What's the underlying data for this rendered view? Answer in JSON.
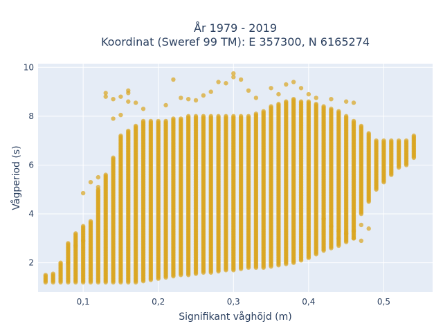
{
  "chart_data": {
    "type": "scatter",
    "title_line1": "År 1979 - 2019",
    "title_line2": "Koordinat (Sweref 99 TM): E 357300, N 6165274",
    "xlabel": "Signifikant våghöjd (m)",
    "ylabel": "Vågperiod (s)",
    "xlim": [
      0.04,
      0.565
    ],
    "ylim": [
      0.8,
      10.15
    ],
    "x_ticks": [
      0.1,
      0.2,
      0.3,
      0.4,
      0.5
    ],
    "x_tick_labels": [
      "0,1",
      "0,2",
      "0,3",
      "0,4",
      "0,5"
    ],
    "y_ticks": [
      2,
      4,
      6,
      8,
      10
    ],
    "y_tick_labels": [
      "2",
      "4",
      "6",
      "8",
      "10"
    ],
    "grid": true,
    "legend": "none",
    "marker_color": "#daa520",
    "background_color": "#e5ecf6",
    "x_step": 0.01,
    "x_values": [
      0.05,
      0.06,
      0.07,
      0.08,
      0.09,
      0.1,
      0.11,
      0.12,
      0.13,
      0.14,
      0.15,
      0.16,
      0.17,
      0.18,
      0.19,
      0.2,
      0.21,
      0.22,
      0.23,
      0.24,
      0.25,
      0.26,
      0.27,
      0.28,
      0.29,
      0.3,
      0.31,
      0.32,
      0.33,
      0.34,
      0.35,
      0.36,
      0.37,
      0.38,
      0.39,
      0.4,
      0.41,
      0.42,
      0.43,
      0.44,
      0.45,
      0.46,
      0.47,
      0.48,
      0.49,
      0.5,
      0.51,
      0.52,
      0.53,
      0.54
    ],
    "y_min": [
      1.2,
      1.2,
      1.2,
      1.2,
      1.2,
      1.2,
      1.2,
      1.2,
      1.2,
      1.2,
      1.2,
      1.2,
      1.2,
      1.25,
      1.3,
      1.35,
      1.4,
      1.45,
      1.5,
      1.5,
      1.55,
      1.6,
      1.6,
      1.65,
      1.7,
      1.7,
      1.75,
      1.8,
      1.8,
      1.8,
      1.85,
      1.9,
      1.95,
      2.0,
      2.1,
      2.2,
      2.35,
      2.5,
      2.6,
      2.7,
      2.85,
      3.0,
      4.0,
      4.5,
      5.0,
      5.3,
      5.6,
      5.9,
      6.0,
      6.3
    ],
    "y_max": [
      1.5,
      1.55,
      2.0,
      2.8,
      3.2,
      3.5,
      3.7,
      5.0,
      5.6,
      6.3,
      7.2,
      7.4,
      7.6,
      7.8,
      7.8,
      7.8,
      7.8,
      7.9,
      7.9,
      8.0,
      8.0,
      8.0,
      8.0,
      8.0,
      8.0,
      8.0,
      8.0,
      8.0,
      8.1,
      8.2,
      8.4,
      8.5,
      8.6,
      8.7,
      8.6,
      8.6,
      8.5,
      8.4,
      8.3,
      8.2,
      8.0,
      7.8,
      7.6,
      7.3,
      7.0,
      7.0,
      7.0,
      7.0,
      7.0,
      7.2
    ],
    "outliers": [
      [
        0.13,
        8.95
      ],
      [
        0.13,
        8.8
      ],
      [
        0.14,
        8.7
      ],
      [
        0.15,
        8.8
      ],
      [
        0.16,
        9.05
      ],
      [
        0.16,
        8.95
      ],
      [
        0.16,
        8.6
      ],
      [
        0.17,
        8.55
      ],
      [
        0.18,
        8.3
      ],
      [
        0.21,
        8.45
      ],
      [
        0.22,
        9.5
      ],
      [
        0.23,
        8.75
      ],
      [
        0.24,
        8.7
      ],
      [
        0.25,
        8.65
      ],
      [
        0.26,
        8.85
      ],
      [
        0.27,
        9.0
      ],
      [
        0.28,
        9.4
      ],
      [
        0.29,
        9.35
      ],
      [
        0.3,
        9.75
      ],
      [
        0.3,
        9.6
      ],
      [
        0.31,
        9.5
      ],
      [
        0.32,
        9.05
      ],
      [
        0.33,
        8.75
      ],
      [
        0.35,
        9.15
      ],
      [
        0.36,
        8.9
      ],
      [
        0.37,
        9.3
      ],
      [
        0.38,
        9.4
      ],
      [
        0.39,
        9.15
      ],
      [
        0.4,
        8.9
      ],
      [
        0.41,
        8.75
      ],
      [
        0.43,
        8.7
      ],
      [
        0.45,
        8.6
      ],
      [
        0.46,
        8.55
      ],
      [
        0.08,
        2.0
      ],
      [
        0.09,
        2.7
      ],
      [
        0.1,
        2.9
      ],
      [
        0.1,
        4.85
      ],
      [
        0.11,
        5.3
      ],
      [
        0.12,
        5.5
      ],
      [
        0.12,
        5.1
      ],
      [
        0.14,
        7.9
      ],
      [
        0.15,
        8.05
      ],
      [
        0.44,
        3.0
      ],
      [
        0.45,
        3.2
      ],
      [
        0.46,
        3.0
      ],
      [
        0.47,
        2.9
      ],
      [
        0.48,
        3.4
      ],
      [
        0.47,
        3.55
      ],
      [
        0.46,
        3.3
      ],
      [
        0.42,
        3.8
      ],
      [
        0.43,
        3.5
      ],
      [
        0.44,
        3.3
      ]
    ]
  }
}
